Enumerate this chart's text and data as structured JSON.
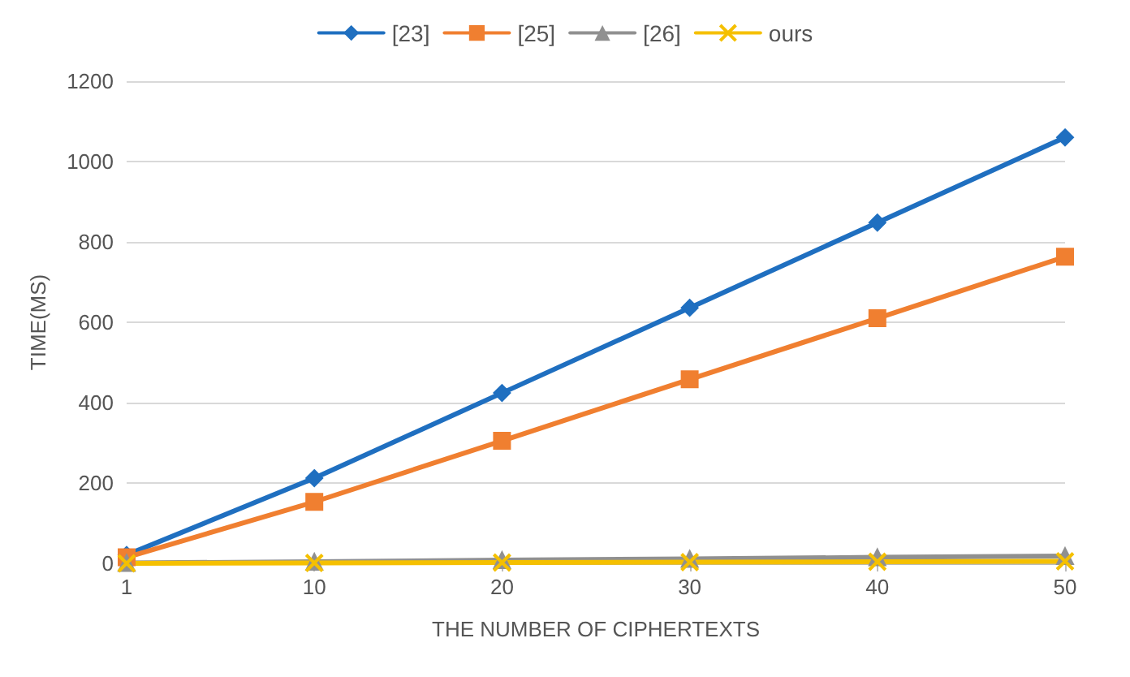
{
  "chart_data": {
    "type": "line",
    "xlabel": "THE NUMBER OF CIPHERTEXTS",
    "ylabel": "TIME(MS)",
    "categories": [
      "1",
      "10",
      "20",
      "30",
      "40",
      "50"
    ],
    "series": [
      {
        "name": "[23]",
        "color": "#1f6fc0",
        "marker": "diamond",
        "values": [
          21,
          212,
          424,
          636,
          848,
          1060
        ]
      },
      {
        "name": "[25]",
        "color": "#f07f30",
        "marker": "square",
        "values": [
          15,
          153,
          305,
          458,
          610,
          763
        ]
      },
      {
        "name": "[26]",
        "color": "#909090",
        "marker": "triangle",
        "values": [
          1,
          4,
          8,
          11,
          15,
          18
        ]
      },
      {
        "name": "ours",
        "color": "#f5c000",
        "marker": "cross",
        "values": [
          0,
          1,
          2,
          3,
          4,
          5
        ]
      }
    ],
    "ylim": [
      0,
      1200
    ],
    "yticks": [
      0,
      200,
      400,
      600,
      800,
      1000,
      1200
    ],
    "grid": "y",
    "legend": "top",
    "line_style": "solid"
  }
}
